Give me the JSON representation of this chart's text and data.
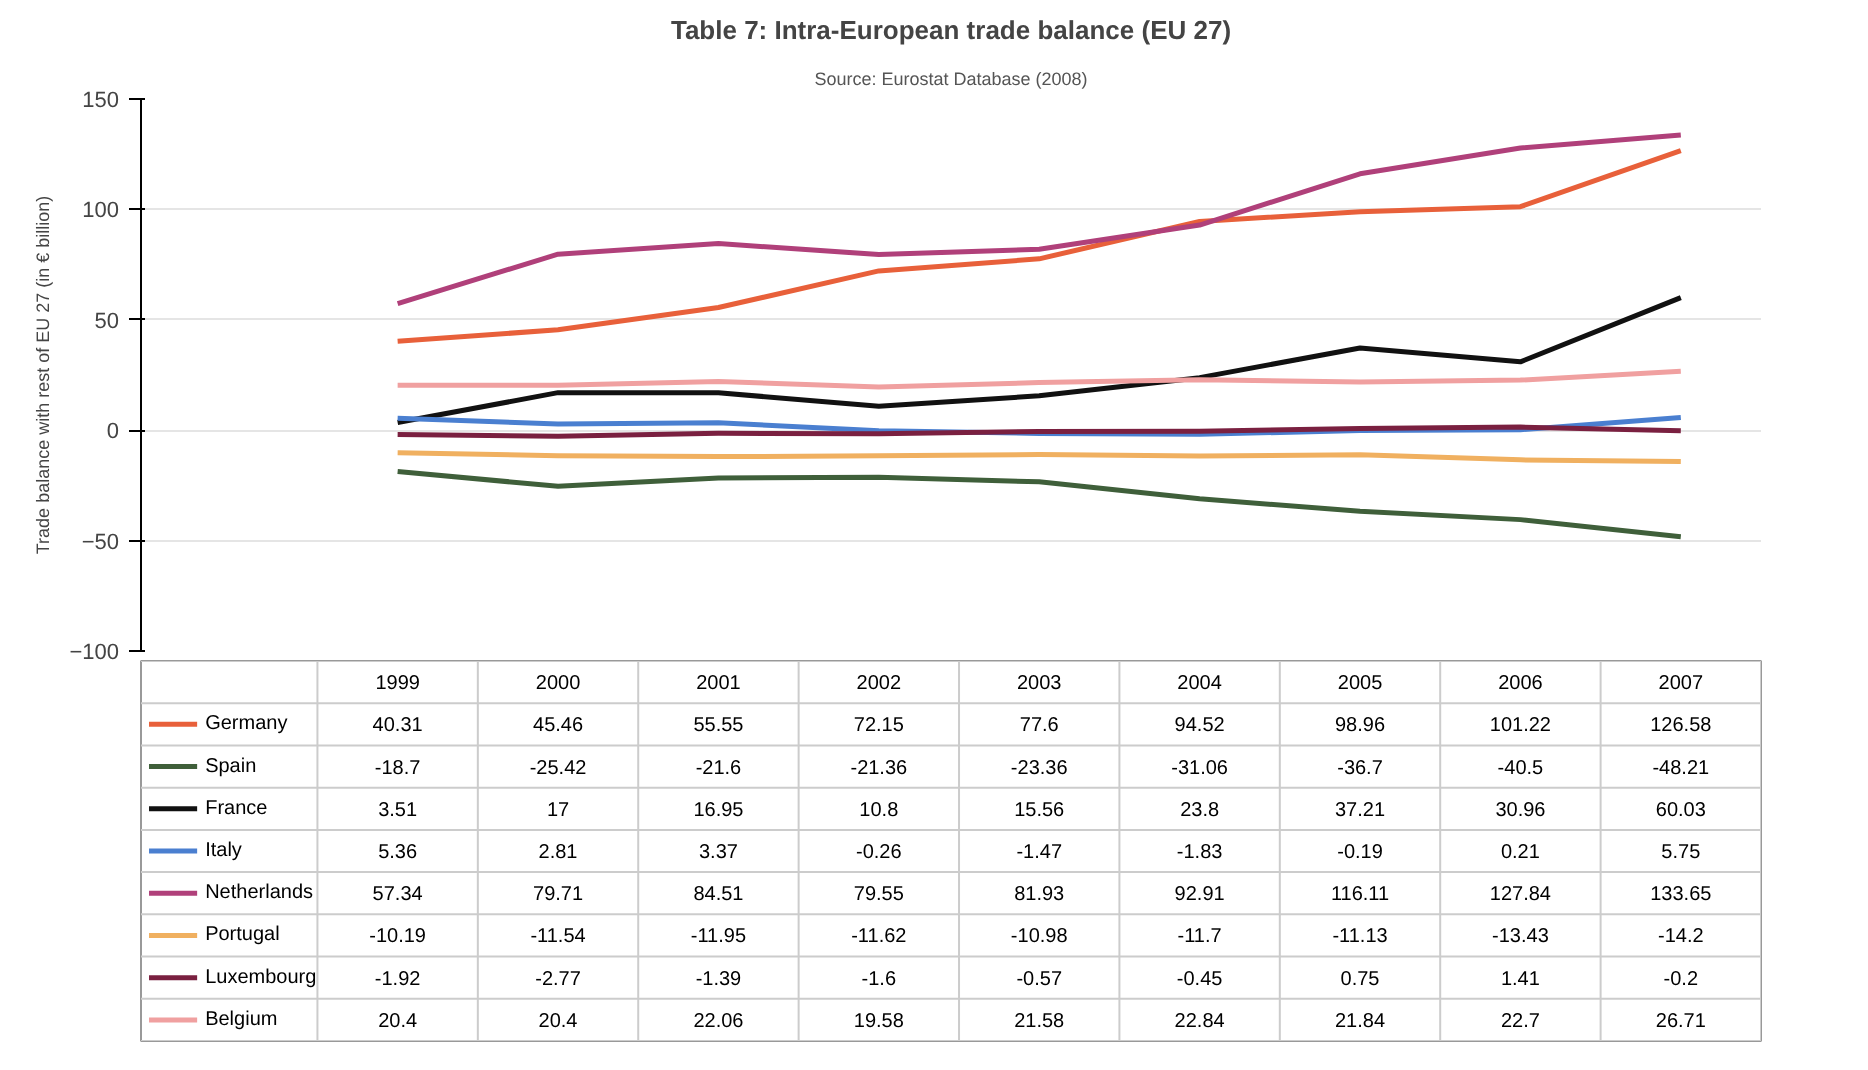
{
  "chart_data": {
    "type": "line",
    "title": "Table 7: Intra-European trade balance (EU 27)",
    "subtitle": "Source: Eurostat Database (2008)",
    "ylabel": "Trade balance with rest of EU 27 (in € billion)",
    "categories": [
      "1999",
      "2000",
      "2001",
      "2002",
      "2003",
      "2004",
      "2005",
      "2006",
      "2007"
    ],
    "series": [
      {
        "name": "Germany",
        "color": "#e8603a",
        "values": [
          40.31,
          45.46,
          55.55,
          72.15,
          77.6,
          94.52,
          98.96,
          101.22,
          126.58
        ]
      },
      {
        "name": "Spain",
        "color": "#3f5f3a",
        "values": [
          -18.7,
          -25.42,
          -21.6,
          -21.36,
          -23.36,
          -31.06,
          -36.7,
          -40.5,
          -48.21
        ]
      },
      {
        "name": "France",
        "color": "#111111",
        "values": [
          3.51,
          17,
          16.95,
          10.8,
          15.56,
          23.8,
          37.21,
          30.96,
          60.03
        ]
      },
      {
        "name": "Italy",
        "color": "#4a7fd0",
        "values": [
          5.36,
          2.81,
          3.37,
          -0.26,
          -1.47,
          -1.83,
          -0.19,
          0.21,
          5.75
        ]
      },
      {
        "name": "Netherlands",
        "color": "#b0407a",
        "values": [
          57.34,
          79.71,
          84.51,
          79.55,
          81.93,
          92.91,
          116.11,
          127.84,
          133.65
        ]
      },
      {
        "name": "Portugal",
        "color": "#f0b060",
        "values": [
          -10.19,
          -11.54,
          -11.95,
          -11.62,
          -10.98,
          -11.7,
          -11.13,
          -13.43,
          -14.2
        ]
      },
      {
        "name": "Luxembourg",
        "color": "#7a2040",
        "values": [
          -1.92,
          -2.77,
          -1.39,
          -1.6,
          -0.57,
          -0.45,
          0.75,
          1.41,
          -0.2
        ]
      },
      {
        "name": "Belgium",
        "color": "#f0a0a0",
        "values": [
          20.4,
          20.4,
          22.06,
          19.58,
          21.58,
          22.84,
          21.84,
          22.7,
          26.71
        ]
      }
    ],
    "ylim": [
      -100,
      150
    ],
    "yticks": [
      -100,
      -50,
      0,
      50,
      100,
      150
    ],
    "grid": "y",
    "legend": "bottom",
    "data_labels": true,
    "marker": "none",
    "line_style": "solid"
  }
}
